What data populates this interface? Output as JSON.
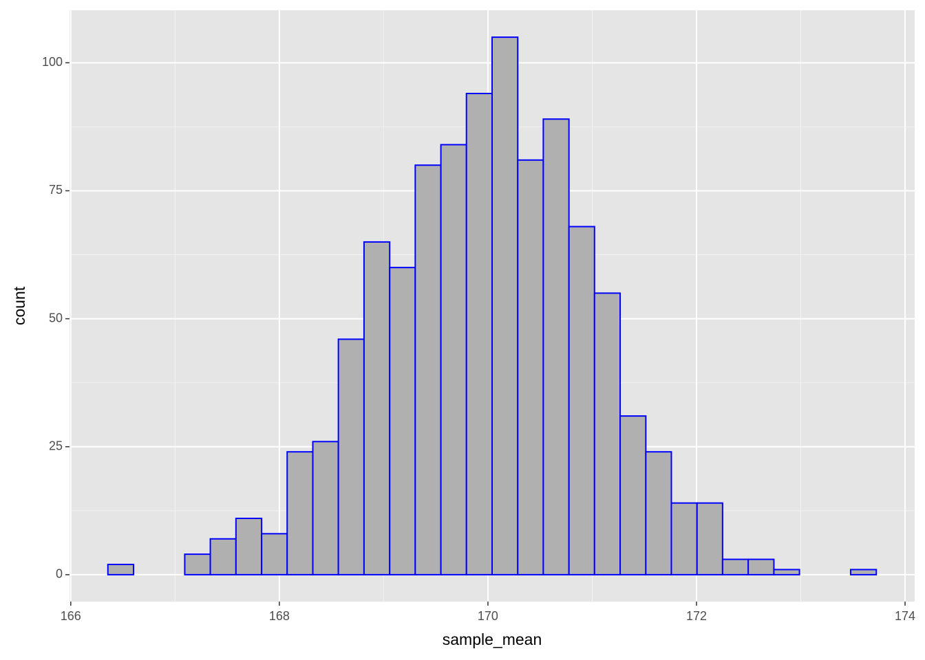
{
  "chart_data": {
    "type": "histogram",
    "x_label": "sample_mean",
    "y_label": "count",
    "bins": [
      166.356,
      166.602,
      166.847,
      167.093,
      167.338,
      167.584,
      167.83,
      168.075,
      168.321,
      168.566,
      168.812,
      169.058,
      169.303,
      169.549,
      169.794,
      170.04,
      170.286,
      170.531,
      170.777,
      171.022,
      171.268,
      171.514,
      171.759,
      172.005,
      172.25,
      172.496,
      172.742,
      172.987,
      173.233,
      173.478,
      173.724
    ],
    "values": [
      2,
      0,
      0,
      4,
      7,
      11,
      8,
      24,
      26,
      46,
      65,
      60,
      80,
      84,
      94,
      105,
      81,
      89,
      68,
      55,
      31,
      24,
      14,
      14,
      3,
      3,
      1,
      0,
      0,
      1
    ],
    "fill": "#b0b0b0",
    "edgecolor": "#0000ff",
    "xlim": [
      165.988,
      174.092
    ],
    "xticks": [
      166,
      168,
      170,
      172,
      174
    ],
    "ylim": [
      -5.25,
      110.25
    ],
    "yticks": [
      0,
      25,
      50,
      75,
      100
    ],
    "grid": true
  }
}
